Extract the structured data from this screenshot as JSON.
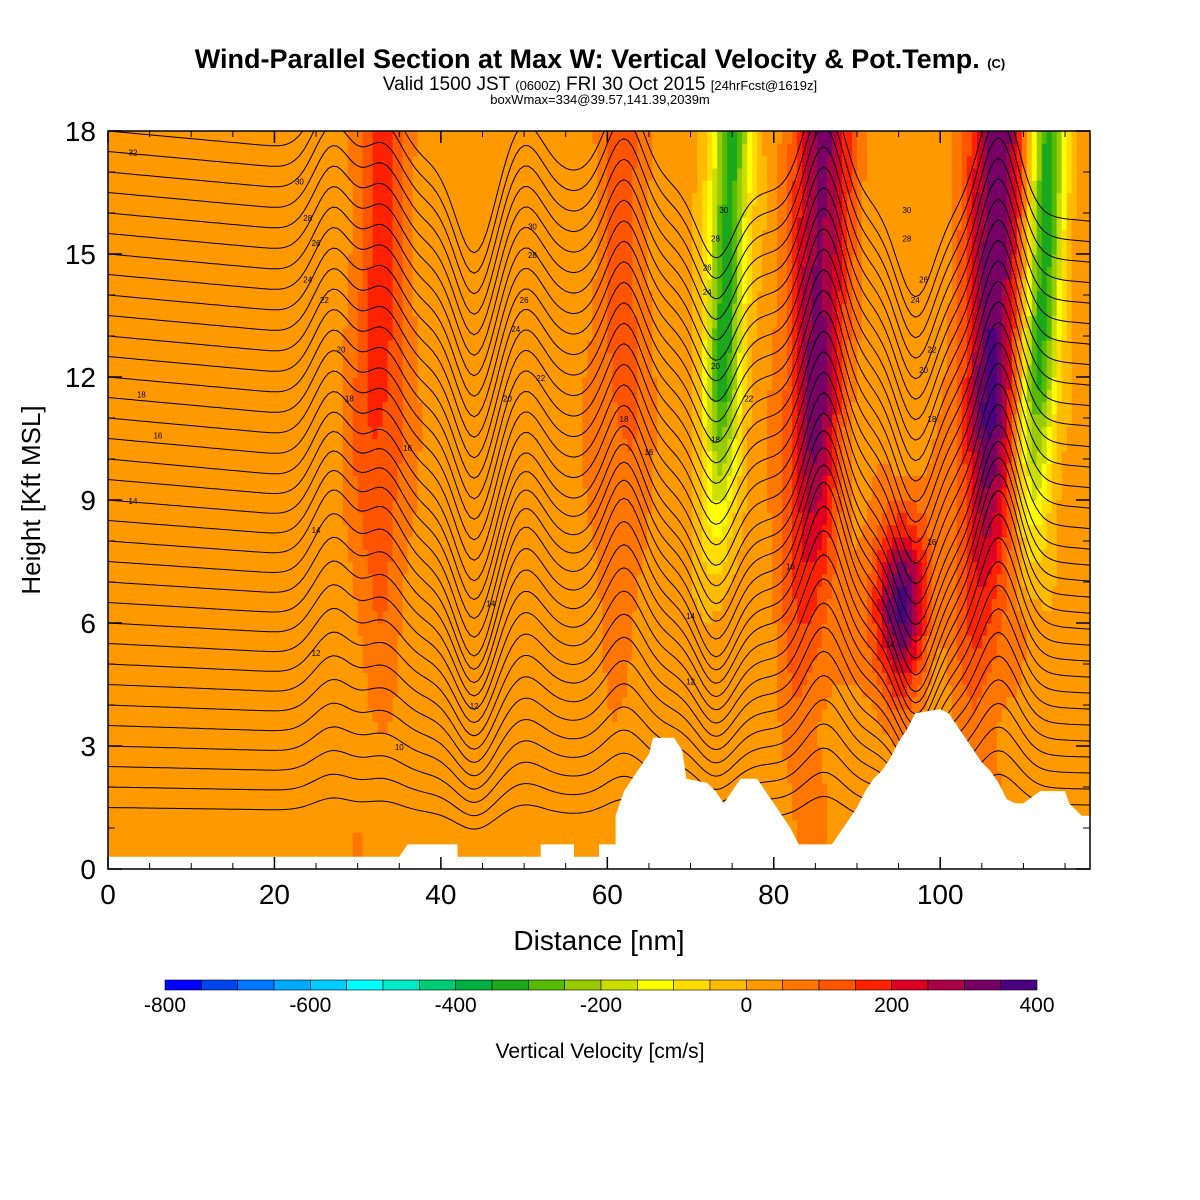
{
  "title": "Wind-Parallel Section at Max W: Vertical Velocity & Pot.Temp.",
  "title_mark": "(C)",
  "subtitle_a": "Valid 1500 JST",
  "subtitle_b": "(0600Z)",
  "subtitle_c": "FRI 30 Oct 2015",
  "subtitle_d": "[24hrFcst@1619z]",
  "subtitle2": "boxWmax=334@39.57,141.39,2039m",
  "chart_data": {
    "type": "heatmap",
    "xlabel": "Distance [nm]",
    "ylabel": "Height [Kft MSL]",
    "xlim": [
      0,
      118
    ],
    "ylim": [
      0,
      18
    ],
    "x_ticks": [
      0,
      20,
      40,
      60,
      80,
      100
    ],
    "y_ticks": [
      0,
      3,
      6,
      9,
      12,
      15,
      18
    ],
    "colorbar": {
      "label": "Vertical Velocity [cm/s]",
      "min": -800,
      "max": 400,
      "step": 50,
      "tick_values": [
        -800,
        -600,
        -400,
        -200,
        0,
        200,
        400
      ],
      "colors": [
        "#0000ff",
        "#0044ee",
        "#0077ff",
        "#00aaff",
        "#00ccff",
        "#00ffff",
        "#00e8c4",
        "#00cc77",
        "#00b040",
        "#1ca81c",
        "#55bb00",
        "#99cc00",
        "#ccdd00",
        "#ffff00",
        "#ffdd00",
        "#ffbb00",
        "#ff9900",
        "#ff7700",
        "#ff5500",
        "#ff2200",
        "#dd0022",
        "#aa0044",
        "#770066",
        "#4b0082"
      ]
    },
    "w_features": [
      {
        "x": 33,
        "kind": "updraft",
        "peak": 150
      },
      {
        "x": 62,
        "kind": "updraft",
        "peak": 100
      },
      {
        "x": 75,
        "kind": "downdraft",
        "peak": -350
      },
      {
        "x": 86,
        "kind": "updraft",
        "peak": 300
      },
      {
        "x": 97,
        "kind": "updraft",
        "peak": 334
      },
      {
        "x": 107,
        "kind": "updraft",
        "peak": 334
      },
      {
        "x": 113,
        "kind": "downdraft",
        "peak": -350
      }
    ],
    "isentrope_labels": [
      {
        "text": "32",
        "x": 3,
        "y": 17.4
      },
      {
        "text": "30",
        "x": 23,
        "y": 16.7
      },
      {
        "text": "28",
        "x": 24,
        "y": 15.8
      },
      {
        "text": "26",
        "x": 25,
        "y": 15.2
      },
      {
        "text": "24",
        "x": 24,
        "y": 14.3
      },
      {
        "text": "22",
        "x": 26,
        "y": 13.8
      },
      {
        "text": "20",
        "x": 28,
        "y": 12.6
      },
      {
        "text": "18",
        "x": 4,
        "y": 11.5
      },
      {
        "text": "18",
        "x": 29,
        "y": 11.4
      },
      {
        "text": "16",
        "x": 6,
        "y": 10.5
      },
      {
        "text": "16",
        "x": 36,
        "y": 10.2
      },
      {
        "text": "14",
        "x": 3,
        "y": 8.9
      },
      {
        "text": "14",
        "x": 25,
        "y": 8.2
      },
      {
        "text": "12",
        "x": 25,
        "y": 5.2
      },
      {
        "text": "10",
        "x": 35,
        "y": 2.9
      },
      {
        "text": "30",
        "x": 51,
        "y": 15.6
      },
      {
        "text": "28",
        "x": 51,
        "y": 14.9
      },
      {
        "text": "26",
        "x": 50,
        "y": 13.8
      },
      {
        "text": "24",
        "x": 49,
        "y": 13.1
      },
      {
        "text": "22",
        "x": 52,
        "y": 11.9
      },
      {
        "text": "20",
        "x": 48,
        "y": 11.4
      },
      {
        "text": "14",
        "x": 46,
        "y": 6.4
      },
      {
        "text": "12",
        "x": 44,
        "y": 3.9
      },
      {
        "text": "18",
        "x": 62,
        "y": 10.9
      },
      {
        "text": "16",
        "x": 65,
        "y": 10.1
      },
      {
        "text": "18",
        "x": 73,
        "y": 10.4
      },
      {
        "text": "14",
        "x": 70,
        "y": 6.1
      },
      {
        "text": "12",
        "x": 70,
        "y": 4.5
      },
      {
        "text": "30",
        "x": 74,
        "y": 16.0
      },
      {
        "text": "28",
        "x": 73,
        "y": 15.3
      },
      {
        "text": "26",
        "x": 72,
        "y": 14.6
      },
      {
        "text": "24",
        "x": 72,
        "y": 14.0
      },
      {
        "text": "20",
        "x": 73,
        "y": 12.2
      },
      {
        "text": "22",
        "x": 77,
        "y": 11.4
      },
      {
        "text": "16",
        "x": 82,
        "y": 7.3
      },
      {
        "text": "30",
        "x": 96,
        "y": 16.0
      },
      {
        "text": "28",
        "x": 96,
        "y": 15.3
      },
      {
        "text": "26",
        "x": 98,
        "y": 14.3
      },
      {
        "text": "24",
        "x": 97,
        "y": 13.8
      },
      {
        "text": "22",
        "x": 99,
        "y": 12.6
      },
      {
        "text": "20",
        "x": 98,
        "y": 12.1
      },
      {
        "text": "18",
        "x": 99,
        "y": 10.9
      },
      {
        "text": "16",
        "x": 99,
        "y": 7.9
      },
      {
        "text": "14",
        "x": 94,
        "y": 5.4
      }
    ],
    "terrain": [
      [
        0,
        0.3
      ],
      [
        35,
        0.3
      ],
      [
        36,
        0.6
      ],
      [
        42,
        0.6
      ],
      [
        42,
        0.3
      ],
      [
        52,
        0.3
      ],
      [
        52,
        0.6
      ],
      [
        56,
        0.6
      ],
      [
        56,
        0.3
      ],
      [
        59,
        0.3
      ],
      [
        59,
        0.6
      ],
      [
        61,
        0.6
      ],
      [
        61,
        1.3
      ],
      [
        62,
        1.9
      ],
      [
        63,
        2.2
      ],
      [
        64,
        2.5
      ],
      [
        65,
        2.8
      ],
      [
        65.5,
        3.2
      ],
      [
        68,
        3.2
      ],
      [
        69,
        2.9
      ],
      [
        69.5,
        2.2
      ],
      [
        72,
        2.1
      ],
      [
        73,
        1.9
      ],
      [
        74,
        1.6
      ],
      [
        75,
        1.9
      ],
      [
        76,
        2.2
      ],
      [
        78,
        2.2
      ],
      [
        79,
        1.9
      ],
      [
        80,
        1.6
      ],
      [
        81,
        1.3
      ],
      [
        82,
        1.0
      ],
      [
        83,
        0.6
      ],
      [
        87,
        0.6
      ],
      [
        88,
        0.9
      ],
      [
        89,
        1.2
      ],
      [
        90,
        1.5
      ],
      [
        91,
        1.9
      ],
      [
        92,
        2.2
      ],
      [
        93,
        2.4
      ],
      [
        94,
        2.7
      ],
      [
        95,
        3.1
      ],
      [
        96,
        3.4
      ],
      [
        97,
        3.8
      ],
      [
        100,
        3.9
      ],
      [
        101,
        3.8
      ],
      [
        102,
        3.5
      ],
      [
        103,
        3.2
      ],
      [
        104,
        2.9
      ],
      [
        105,
        2.6
      ],
      [
        106,
        2.4
      ],
      [
        107,
        2.1
      ],
      [
        108,
        1.7
      ],
      [
        109,
        1.6
      ],
      [
        110,
        1.6
      ],
      [
        112,
        1.9
      ],
      [
        115,
        1.9
      ],
      [
        115.5,
        1.6
      ],
      [
        117,
        1.3
      ],
      [
        118,
        1.3
      ]
    ]
  }
}
